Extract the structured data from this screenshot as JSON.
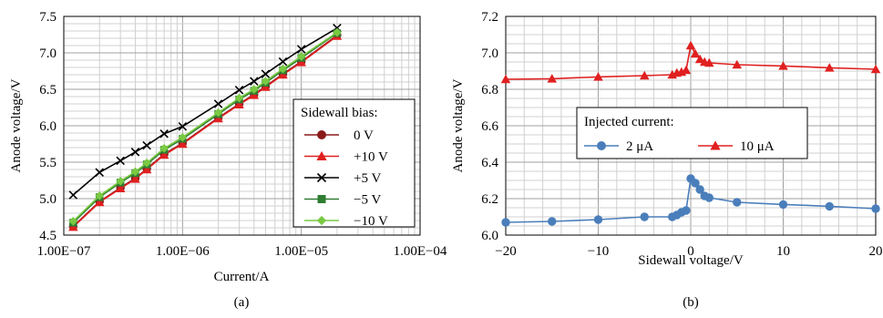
{
  "chart_data": [
    {
      "type": "line",
      "panel_label": "(a)",
      "xlabel": "Current/A",
      "ylabel": "Anode voltage/V",
      "x_scale": "log",
      "xlim": [
        1e-07,
        0.0001
      ],
      "ylim": [
        4.5,
        7.5
      ],
      "x_tick_labels": [
        "1.00E−07",
        "1.00E−06",
        "1.00E−05",
        "1.00E−04"
      ],
      "y_tick_labels": [
        "4.5",
        "5.0",
        "5.5",
        "6.0",
        "6.5",
        "7.0",
        "7.5"
      ],
      "y_ticks": [
        4.5,
        5.0,
        5.5,
        6.0,
        6.5,
        7.0,
        7.5
      ],
      "grid": true,
      "legend_title": "Sidewall bias:",
      "legend_position": "bottom-right",
      "series": [
        {
          "name": "0 V",
          "color": "#8b1a1a",
          "marker": "circle",
          "x": [
            1.2e-07,
            2e-07,
            3e-07,
            4e-07,
            5e-07,
            7e-07,
            1e-06,
            2e-06,
            3e-06,
            4e-06,
            5e-06,
            7e-06,
            1e-05,
            2e-05
          ],
          "y": [
            4.62,
            4.96,
            5.15,
            5.28,
            5.41,
            5.61,
            5.76,
            6.11,
            6.3,
            6.43,
            6.54,
            6.71,
            6.88,
            7.24
          ]
        },
        {
          "name": "+10 V",
          "color": "#e02020",
          "marker": "triangle",
          "x": [
            1.2e-07,
            2e-07,
            3e-07,
            4e-07,
            5e-07,
            7e-07,
            1e-06,
            2e-06,
            3e-06,
            4e-06,
            5e-06,
            7e-06,
            1e-05,
            2e-05
          ],
          "y": [
            4.61,
            4.95,
            5.14,
            5.27,
            5.4,
            5.6,
            5.75,
            6.1,
            6.29,
            6.42,
            6.53,
            6.7,
            6.87,
            7.23
          ]
        },
        {
          "name": "+5 V",
          "color": "#000000",
          "marker": "x",
          "x": [
            1.2e-07,
            2e-07,
            3e-07,
            4e-07,
            5e-07,
            7e-07,
            1e-06,
            2e-06,
            3e-06,
            4e-06,
            5e-06,
            7e-06,
            1e-05,
            2e-05
          ],
          "y": [
            5.05,
            5.36,
            5.52,
            5.64,
            5.73,
            5.89,
            5.99,
            6.3,
            6.49,
            6.61,
            6.71,
            6.88,
            7.05,
            7.34
          ]
        },
        {
          "name": "−5 V",
          "color": "#2e7d32",
          "marker": "square",
          "x": [
            1.2e-07,
            2e-07,
            3e-07,
            4e-07,
            5e-07,
            7e-07,
            1e-06,
            2e-06,
            3e-06,
            4e-06,
            5e-06,
            7e-06,
            1e-05,
            2e-05
          ],
          "y": [
            4.67,
            5.02,
            5.22,
            5.35,
            5.47,
            5.67,
            5.82,
            6.16,
            6.36,
            6.48,
            6.59,
            6.76,
            6.93,
            7.27
          ]
        },
        {
          "name": "−10 V",
          "color": "#7ac943",
          "marker": "diamond",
          "x": [
            1.2e-07,
            2e-07,
            3e-07,
            4e-07,
            5e-07,
            7e-07,
            1e-06,
            2e-06,
            3e-06,
            4e-06,
            5e-06,
            7e-06,
            1e-05,
            2e-05
          ],
          "y": [
            4.69,
            5.04,
            5.24,
            5.37,
            5.49,
            5.69,
            5.84,
            6.18,
            6.38,
            6.5,
            6.61,
            6.78,
            6.95,
            7.28
          ]
        }
      ]
    },
    {
      "type": "line",
      "panel_label": "(b)",
      "xlabel": "Sidewall voltage/V",
      "ylabel": "Anode voltage/V",
      "xlim": [
        -20,
        20
      ],
      "ylim": [
        6.0,
        7.2
      ],
      "x_ticks": [
        -20,
        -10,
        0,
        10,
        20
      ],
      "x_tick_labels": [
        "−20",
        "−10",
        "0",
        "10",
        "20"
      ],
      "y_ticks": [
        6.0,
        6.2,
        6.4,
        6.6,
        6.8,
        7.0,
        7.2
      ],
      "y_tick_labels": [
        "6.0",
        "6.2",
        "6.4",
        "6.6",
        "6.8",
        "7.0",
        "7.2"
      ],
      "grid": true,
      "legend_title": "Injected current:",
      "legend_position": "center-left",
      "series": [
        {
          "name": "2 μA",
          "color": "#4a7ebb",
          "marker": "circle",
          "x": [
            -20,
            -15,
            -10,
            -5,
            -2,
            -1.5,
            -1,
            -0.5,
            0,
            0.5,
            1,
            1.5,
            2,
            5,
            10,
            15,
            20
          ],
          "y": [
            6.07,
            6.075,
            6.085,
            6.1,
            6.1,
            6.11,
            6.125,
            6.135,
            6.31,
            6.285,
            6.25,
            6.215,
            6.205,
            6.18,
            6.168,
            6.158,
            6.145
          ]
        },
        {
          "name": "10 μA",
          "color": "#e02020",
          "marker": "triangle",
          "x": [
            -20,
            -15,
            -10,
            -5,
            -2,
            -1.5,
            -1,
            -0.5,
            0,
            0.5,
            1,
            1.5,
            2,
            5,
            10,
            15,
            20
          ],
          "y": [
            6.855,
            6.858,
            6.868,
            6.875,
            6.88,
            6.89,
            6.895,
            6.905,
            7.04,
            6.995,
            6.965,
            6.95,
            6.945,
            6.935,
            6.928,
            6.918,
            6.91
          ]
        }
      ]
    }
  ]
}
